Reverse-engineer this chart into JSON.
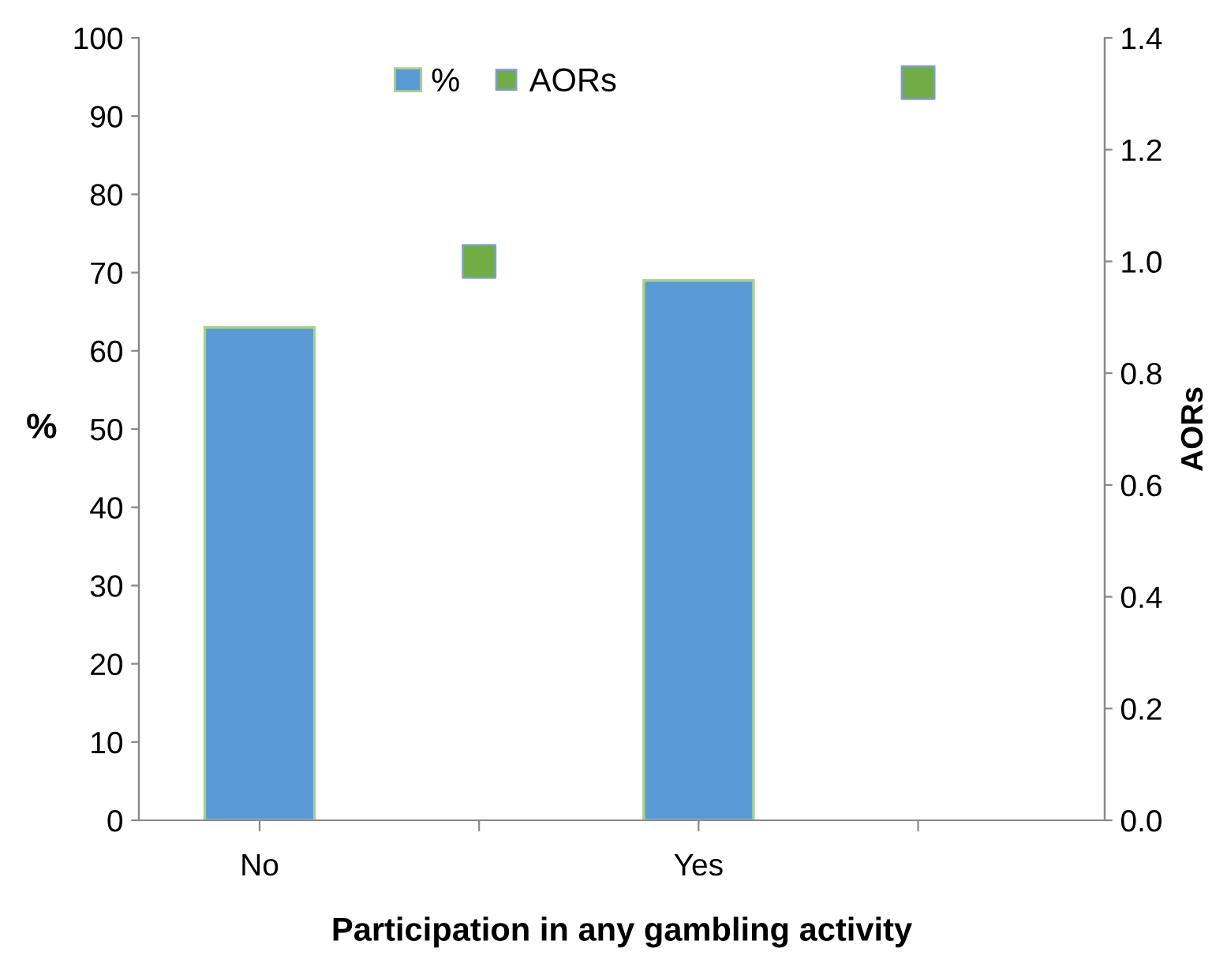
{
  "chart_data": {
    "type": "bar",
    "xlabel": "Participation in any gambling activity",
    "ylabel": "%",
    "y2label": "AORs",
    "categories": [
      "No",
      null,
      "Yes",
      null
    ],
    "series": [
      {
        "name": "%",
        "color": "#5b9bd5",
        "values": [
          63,
          null,
          69,
          null
        ]
      },
      {
        "name": "AORs",
        "type": "scatter",
        "axis": "y2",
        "color": "#70ad47",
        "values": [
          null,
          1.0,
          null,
          1.32
        ]
      }
    ],
    "ylim": [
      0,
      100
    ],
    "yticks": [
      0,
      10,
      20,
      30,
      40,
      50,
      60,
      70,
      80,
      90,
      100
    ],
    "y2lim": [
      0,
      1.4
    ],
    "y2ticks": [
      {
        "value": 0,
        "label": "0.0"
      },
      0.2,
      0.4,
      0.6,
      0.8,
      {
        "value": 1,
        "label": "1.0"
      },
      1.2,
      1.4
    ],
    "marker": "square",
    "legend": "top",
    "grid": false
  }
}
